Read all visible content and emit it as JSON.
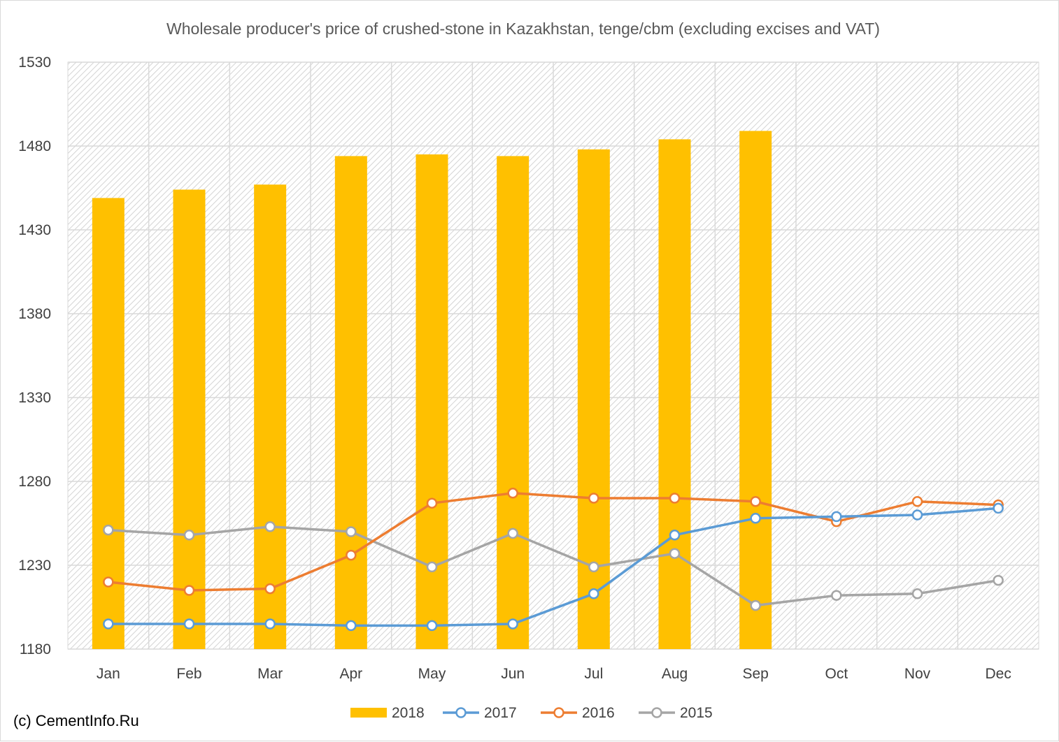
{
  "chart_data": {
    "type": "bar",
    "title": "Wholesale producer's price of crushed-stone in Kazakhstan, tenge/cbm (excluding excises and VAT)",
    "xlabel": "",
    "ylabel": "",
    "categories": [
      "Jan",
      "Feb",
      "Mar",
      "Apr",
      "May",
      "Jun",
      "Jul",
      "Aug",
      "Sep",
      "Oct",
      "Nov",
      "Dec"
    ],
    "ylim": [
      1180,
      1530
    ],
    "yticks": [
      1180,
      1230,
      1280,
      1330,
      1380,
      1430,
      1480,
      1530
    ],
    "grid": true,
    "legend_position": "bottom",
    "series": [
      {
        "name": "2018",
        "kind": "bar",
        "color": "#FFC000",
        "values": [
          1449,
          1454,
          1457,
          1474,
          1475,
          1474,
          1478,
          1484,
          1489,
          null,
          null,
          null
        ]
      },
      {
        "name": "2017",
        "kind": "line",
        "color": "#5B9BD5",
        "values": [
          1195,
          1195,
          1195,
          1194,
          1194,
          1195,
          1213,
          1248,
          1258,
          1259,
          1260,
          1264
        ]
      },
      {
        "name": "2016",
        "kind": "line",
        "color": "#ED7D31",
        "values": [
          1220,
          1215,
          1216,
          1236,
          1267,
          1273,
          1270,
          1270,
          1268,
          1256,
          1268,
          1266
        ]
      },
      {
        "name": "2015",
        "kind": "line",
        "color": "#A5A5A5",
        "values": [
          1251,
          1248,
          1253,
          1250,
          1229,
          1249,
          1229,
          1237,
          1206,
          1212,
          1213,
          1221
        ]
      }
    ]
  },
  "credit": "(c) CementInfo.Ru"
}
